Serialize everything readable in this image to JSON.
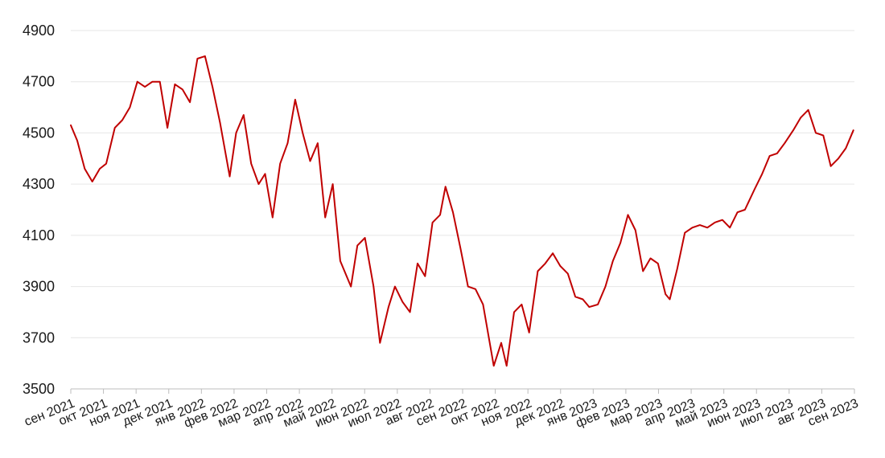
{
  "chart_data": {
    "type": "line",
    "title": "",
    "xlabel": "",
    "ylabel": "",
    "ylim": [
      3500,
      4900
    ],
    "grid": true,
    "y_ticks": [
      3500,
      3700,
      3900,
      4100,
      4300,
      4500,
      4700,
      4900
    ],
    "x_ticks": [
      "сен 2021",
      "окт 2021",
      "ноя 2021",
      "дек 2021",
      "янв 2022",
      "фев 2022",
      "мар 2022",
      "апр 2022",
      "май 2022",
      "июн 2022",
      "июл 2022",
      "авг 2022",
      "сен 2022",
      "окт 2022",
      "ноя 2022",
      "дек 2022",
      "янв 2023",
      "фев 2023",
      "мар 2023",
      "апр 2023",
      "май 2023",
      "июн 2023",
      "июл 2023",
      "авг 2023",
      "сен 2023"
    ],
    "series": [
      {
        "color": "#c00000",
        "x": [
          "2021-09-01",
          "2021-09-07",
          "2021-09-14",
          "2021-09-21",
          "2021-09-28",
          "2021-10-04",
          "2021-10-12",
          "2021-10-19",
          "2021-10-26",
          "2021-11-02",
          "2021-11-09",
          "2021-11-16",
          "2021-11-23",
          "2021-11-30",
          "2021-12-07",
          "2021-12-14",
          "2021-12-21",
          "2021-12-28",
          "2022-01-04",
          "2022-01-11",
          "2022-01-18",
          "2022-01-27",
          "2022-02-02",
          "2022-02-09",
          "2022-02-16",
          "2022-02-23",
          "2022-03-01",
          "2022-03-08",
          "2022-03-15",
          "2022-03-22",
          "2022-03-29",
          "2022-04-05",
          "2022-04-12",
          "2022-04-19",
          "2022-04-26",
          "2022-05-03",
          "2022-05-10",
          "2022-05-20",
          "2022-05-26",
          "2022-06-02",
          "2022-06-10",
          "2022-06-16",
          "2022-06-24",
          "2022-06-30",
          "2022-07-07",
          "2022-07-14",
          "2022-07-21",
          "2022-07-28",
          "2022-08-04",
          "2022-08-11",
          "2022-08-16",
          "2022-08-23",
          "2022-08-30",
          "2022-09-06",
          "2022-09-13",
          "2022-09-20",
          "2022-09-30",
          "2022-10-07",
          "2022-10-12",
          "2022-10-19",
          "2022-10-26",
          "2022-11-02",
          "2022-11-10",
          "2022-11-17",
          "2022-11-24",
          "2022-12-01",
          "2022-12-08",
          "2022-12-15",
          "2022-12-22",
          "2022-12-28",
          "2023-01-05",
          "2023-01-12",
          "2023-01-19",
          "2023-01-26",
          "2023-02-02",
          "2023-02-09",
          "2023-02-16",
          "2023-02-23",
          "2023-03-02",
          "2023-03-09",
          "2023-03-13",
          "2023-03-20",
          "2023-03-27",
          "2023-04-03",
          "2023-04-10",
          "2023-04-17",
          "2023-04-24",
          "2023-05-01",
          "2023-05-08",
          "2023-05-15",
          "2023-05-22",
          "2023-05-31",
          "2023-06-07",
          "2023-06-14",
          "2023-06-21",
          "2023-06-28",
          "2023-07-06",
          "2023-07-13",
          "2023-07-20",
          "2023-07-27",
          "2023-08-03",
          "2023-08-10",
          "2023-08-17",
          "2023-08-24",
          "2023-08-31"
        ],
        "y": [
          4530,
          4470,
          4360,
          4310,
          4360,
          4380,
          4520,
          4550,
          4600,
          4700,
          4680,
          4700,
          4700,
          4520,
          4690,
          4670,
          4620,
          4790,
          4800,
          4680,
          4540,
          4330,
          4500,
          4570,
          4380,
          4300,
          4340,
          4170,
          4380,
          4460,
          4630,
          4500,
          4390,
          4460,
          4170,
          4300,
          4000,
          3900,
          4060,
          4090,
          3900,
          3680,
          3820,
          3900,
          3840,
          3800,
          3990,
          3940,
          4150,
          4180,
          4290,
          4190,
          4050,
          3900,
          3890,
          3830,
          3590,
          3680,
          3590,
          3800,
          3830,
          3720,
          3960,
          3990,
          4030,
          3980,
          3950,
          3860,
          3850,
          3820,
          3830,
          3900,
          4000,
          4070,
          4180,
          4120,
          3960,
          4010,
          3990,
          3870,
          3850,
          3970,
          4110,
          4130,
          4140,
          4130,
          4150,
          4160,
          4130,
          4190,
          4200,
          4280,
          4340,
          4410,
          4420,
          4460,
          4510,
          4560,
          4590,
          4500,
          4490,
          4370,
          4400,
          4440,
          4510
        ]
      }
    ]
  }
}
